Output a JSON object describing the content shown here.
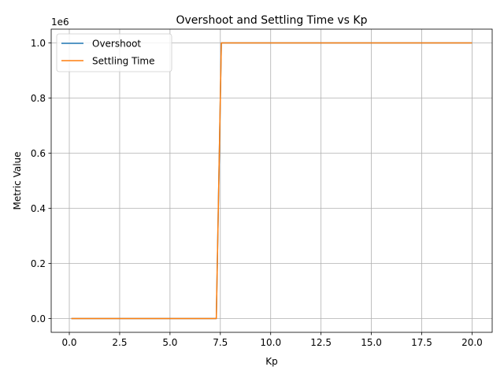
{
  "chart_data": {
    "type": "line",
    "title": "Overshoot and Settling Time vs Kp",
    "xlabel": "Kp",
    "ylabel": "Metric Value",
    "y_offset_label": "1e6",
    "xlim": [
      -0.9,
      21.0
    ],
    "ylim": [
      -50000,
      1050000
    ],
    "grid": true,
    "legend_position": "upper-left",
    "x_ticks": [
      0.0,
      2.5,
      5.0,
      7.5,
      10.0,
      12.5,
      15.0,
      17.5,
      20.0
    ],
    "x_tick_labels": [
      "0.0",
      "2.5",
      "5.0",
      "7.5",
      "10.0",
      "12.5",
      "15.0",
      "17.5",
      "20.0"
    ],
    "y_ticks": [
      0,
      200000,
      400000,
      600000,
      800000,
      1000000
    ],
    "y_tick_labels": [
      "0.0",
      "0.2",
      "0.4",
      "0.6",
      "0.8",
      "1.0"
    ],
    "series": [
      {
        "name": "Overshoot",
        "color": "#1f77b4",
        "x": [
          0.1,
          7.3,
          7.55,
          20.0
        ],
        "y": [
          0,
          0,
          1000000,
          1000000
        ]
      },
      {
        "name": "Settling Time",
        "color": "#ff7f0e",
        "x": [
          0.1,
          7.3,
          7.55,
          20.0
        ],
        "y": [
          0,
          0,
          1000000,
          1000000
        ]
      }
    ]
  }
}
